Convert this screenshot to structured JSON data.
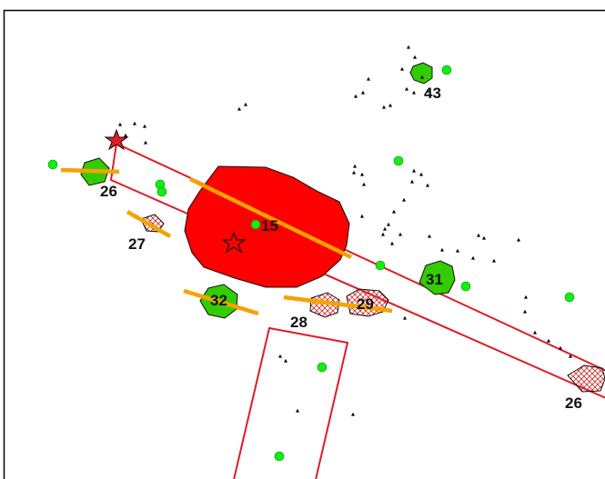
{
  "map": {
    "labels": {
      "fire_main": "15",
      "patch_26_left": "26",
      "patch_27": "27",
      "patch_28": "28",
      "patch_29": "29",
      "patch_31": "31",
      "patch_32": "32",
      "patch_43": "43",
      "patch_26_right": "26"
    },
    "colors": {
      "burn_fill": "#ff0000",
      "corridor_stroke": "#e01b24",
      "green_patch": "#33cc00",
      "green_dot": "#11ee11",
      "orange_line": "#f5a300",
      "hatch": "#d03030",
      "tree_marker": "#000000",
      "frame": "#000000"
    },
    "icons": {
      "ignition_filled": "star-icon-filled",
      "ignition_outline": "star-icon-outline",
      "tree": "triangle-icon",
      "sensor": "circle-dot-icon"
    }
  }
}
